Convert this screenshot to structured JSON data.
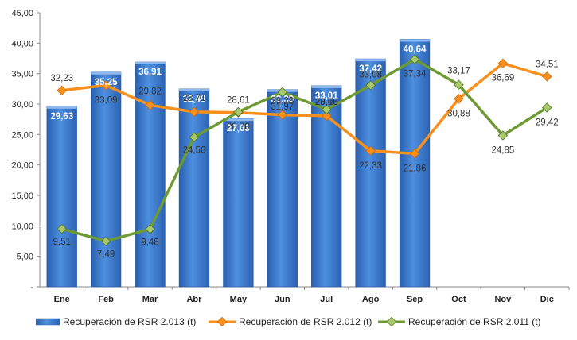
{
  "chart_data": {
    "type": "bar",
    "categories": [
      "Ene",
      "Feb",
      "Mar",
      "Abr",
      "May",
      "Jun",
      "Jul",
      "Ago",
      "Sep",
      "Oct",
      "Nov",
      "Dic"
    ],
    "y_ticks": [
      "-",
      "5,00",
      "10,00",
      "15,00",
      "20,00",
      "25,00",
      "30,00",
      "35,00",
      "40,00",
      "45,00"
    ],
    "ylim": [
      0,
      45
    ],
    "grid": false,
    "legend_position": "bottom",
    "series": [
      {
        "name": "Recuperación de RSR 2.013 (t)",
        "type": "bar",
        "color": "#3A7BD5",
        "values": [
          29.63,
          35.25,
          36.91,
          32.49,
          27.63,
          32.39,
          33.01,
          37.42,
          40.64,
          null,
          null,
          null
        ],
        "labels": [
          "29,63",
          "35,25",
          "36,91",
          "32,49",
          "27,63",
          "32,39",
          "33,01",
          "37,42",
          "40,64",
          "",
          "",
          ""
        ]
      },
      {
        "name": "Recuperación de RSR 2.012 (t)",
        "type": "line",
        "color": "#F7901E",
        "values": [
          32.23,
          33.09,
          29.82,
          28.71,
          28.61,
          28.23,
          28.06,
          22.33,
          21.86,
          30.88,
          36.69,
          34.51
        ],
        "labels": [
          "32,23",
          "33,09",
          "29,82",
          "28,71",
          "28,61",
          "28,23",
          "28,06",
          "22,33",
          "21,86",
          "30,88",
          "36,69",
          "34,51"
        ]
      },
      {
        "name": "Recuperación de RSR 2.011 (t)",
        "type": "line",
        "color": "#6E9A34",
        "values": [
          9.51,
          7.49,
          9.48,
          24.56,
          28.7,
          31.97,
          29.1,
          33.08,
          37.34,
          33.17,
          24.85,
          29.42
        ],
        "labels": [
          "9,51",
          "7,49",
          "9,48",
          "24,56",
          "28,70",
          "31,97",
          "29,10",
          "33,08",
          "37,34",
          "33,17",
          "24,85",
          "29,42"
        ]
      }
    ]
  }
}
